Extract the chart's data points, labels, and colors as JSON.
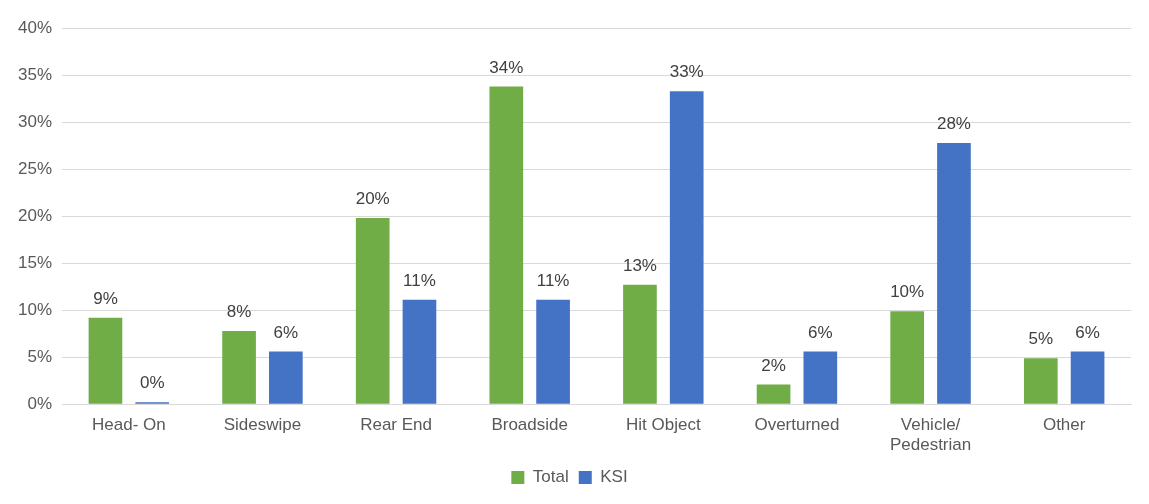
{
  "chart_data": {
    "type": "bar",
    "categories": [
      "Head- On",
      "Sideswipe",
      "Rear End",
      "Broadside",
      "Hit Object",
      "Overturned",
      "Vehicle/ Pedestrian",
      "Other"
    ],
    "series": [
      {
        "name": "Total",
        "color": "#70ad47",
        "values": [
          9.2,
          7.8,
          19.8,
          33.8,
          12.7,
          2.1,
          9.9,
          4.9
        ],
        "value_labels": [
          "9%",
          "8%",
          "20%",
          "34%",
          "13%",
          "2%",
          "10%",
          "5%"
        ]
      },
      {
        "name": "KSI",
        "color": "#4472c4",
        "values": [
          0,
          5.6,
          11.1,
          11.1,
          33.3,
          5.6,
          27.8,
          5.6
        ],
        "value_labels": [
          "0%",
          "6%",
          "11%",
          "11%",
          "33%",
          "6%",
          "28%",
          "6%"
        ]
      }
    ],
    "ylim": [
      0,
      40
    ],
    "yticks": [
      {
        "value": 0,
        "label": "0%"
      },
      {
        "value": 5,
        "label": "5%"
      },
      {
        "value": 10,
        "label": "10%"
      },
      {
        "value": 15,
        "label": "15%"
      },
      {
        "value": 20,
        "label": "20%"
      },
      {
        "value": 25,
        "label": "25%"
      },
      {
        "value": 30,
        "label": "30%"
      },
      {
        "value": 35,
        "label": "35%"
      },
      {
        "value": 40,
        "label": "40%"
      }
    ],
    "grid": "y",
    "legend": "bottom"
  }
}
